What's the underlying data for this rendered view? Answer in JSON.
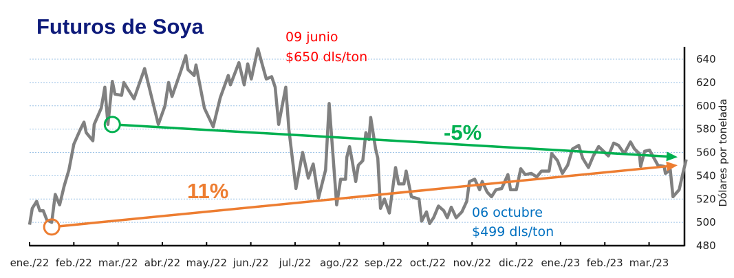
{
  "chart_data": {
    "type": "line",
    "title": "Futuros de Soya",
    "ylabel": "Dólares por tonelada",
    "xlabel": "",
    "ylim": [
      480,
      640
    ],
    "xlim_months": [
      0,
      14.8
    ],
    "yticks": [
      480,
      500,
      520,
      540,
      560,
      580,
      600,
      620,
      640
    ],
    "xtick_labels": [
      "ene./22",
      "feb./22",
      "mar./22",
      "abr./22",
      "may./22",
      "jun./22",
      "jul./22",
      "ago./22",
      "sep./22",
      "oct./22",
      "nov./22",
      "dic./22",
      "ene./23",
      "feb./23",
      "mar./23"
    ],
    "grid": "horizontal dashed",
    "y_axis_side": "right",
    "series": [
      {
        "name": "Futuros de Soya",
        "color": "#808080",
        "x_month": [
          0,
          0.06,
          0.16,
          0.23,
          0.31,
          0.39,
          0.5,
          0.58,
          0.68,
          0.78,
          0.89,
          1.0,
          1.15,
          1.23,
          1.28,
          1.43,
          1.46,
          1.62,
          1.7,
          1.77,
          1.87,
          1.93,
          2.08,
          2.13,
          2.21,
          2.36,
          2.6,
          2.78,
          2.91,
          3.06,
          3.14,
          3.22,
          3.42,
          3.53,
          3.58,
          3.72,
          3.76,
          3.95,
          4.15,
          4.31,
          4.49,
          4.54,
          4.73,
          4.85,
          4.93,
          5.01,
          5.16,
          5.35,
          5.47,
          5.55,
          5.63,
          5.79,
          5.86,
          6.02,
          6.17,
          6.3,
          6.41,
          6.53,
          6.69,
          6.77,
          6.94,
          7.03,
          7.14,
          7.17,
          7.23,
          7.29,
          7.37,
          7.43,
          7.53,
          7.6,
          7.67,
          7.71,
          7.82,
          7.87,
          7.93,
          8.02,
          8.13,
          8.27,
          8.34,
          8.46,
          8.51,
          8.63,
          8.8,
          8.86,
          8.97,
          9.04,
          9.13,
          9.24,
          9.36,
          9.44,
          9.53,
          9.64,
          9.77,
          9.88,
          9.94,
          10.06,
          10.17,
          10.23,
          10.34,
          10.44,
          10.54,
          10.67,
          10.81,
          10.87,
          11.0,
          11.1,
          11.2,
          11.34,
          11.46,
          11.57,
          11.74,
          11.8,
          11.93,
          12.04,
          12.16,
          12.27,
          12.41,
          12.5,
          12.63,
          12.74,
          12.86,
          12.97,
          13.08,
          13.2,
          13.31,
          13.44,
          13.58,
          13.67,
          13.78,
          13.81,
          13.9,
          14.01,
          14.2,
          14.34,
          14.37,
          14.48,
          14.54,
          14.68,
          14.77,
          14.84
        ],
        "values": [
          498,
          512,
          518,
          510,
          510,
          502,
          500,
          524,
          515,
          531,
          545,
          567,
          580,
          586,
          577,
          570,
          584,
          598,
          616,
          584,
          621,
          610,
          609,
          620,
          615,
          606,
          632,
          604,
          584,
          600,
          620,
          608,
          630,
          643,
          631,
          626,
          635,
          598,
          582,
          607,
          626,
          618,
          637,
          618,
          636,
          623,
          649,
          623,
          625,
          616,
          584,
          616,
          580,
          529,
          560,
          538,
          550,
          521,
          545,
          602,
          515,
          537,
          537,
          556,
          565,
          553,
          535,
          549,
          553,
          577,
          571,
          590,
          563,
          555,
          512,
          520,
          508,
          547,
          533,
          533,
          544,
          522,
          520,
          501,
          509,
          499,
          504,
          514,
          510,
          504,
          513,
          504,
          509,
          518,
          535,
          537,
          528,
          535,
          526,
          522,
          528,
          529,
          541,
          528,
          528,
          546,
          541,
          542,
          539,
          544,
          544,
          559,
          553,
          542,
          549,
          563,
          566,
          555,
          547,
          557,
          565,
          561,
          557,
          568,
          566,
          559,
          569,
          563,
          559,
          548,
          561,
          562,
          549,
          548,
          542,
          545,
          522,
          528,
          543,
          554
        ]
      }
    ],
    "trendlines": [
      {
        "name": "trend-down",
        "label": "-5%",
        "color": "#00b050",
        "start": [
          1.87,
          584
        ],
        "end": [
          14.8,
          556
        ]
      },
      {
        "name": "trend-up",
        "label": "11%",
        "color": "#ed7d31",
        "start": [
          0.5,
          496
        ],
        "end": [
          14.8,
          549
        ]
      }
    ],
    "annotations": [
      {
        "name": "max-annotation",
        "lines": [
          "09 junio",
          "$650 dls/ton"
        ],
        "color": "#ff0000"
      },
      {
        "name": "min-annotation",
        "lines": [
          "06 octubre",
          "$499 dls/ton"
        ],
        "color": "#0070c0"
      }
    ]
  }
}
